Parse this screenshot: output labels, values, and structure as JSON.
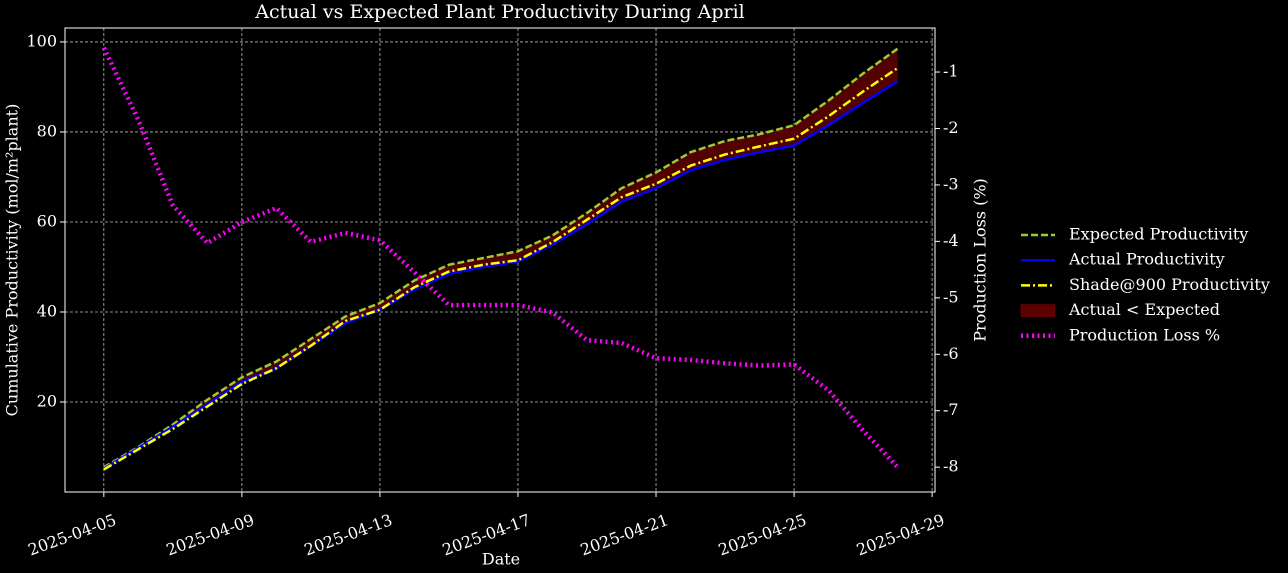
{
  "chart_data": {
    "type": "line",
    "title": "Actual vs Expected Plant Productivity During April",
    "x_label": "Date",
    "y_label": "Cumulative Productivity (mol/m²plant)",
    "y2_label": "Production Loss (%)",
    "x": [
      "2025-04-05",
      "2025-04-06",
      "2025-04-07",
      "2025-04-08",
      "2025-04-09",
      "2025-04-10",
      "2025-04-11",
      "2025-04-12",
      "2025-04-13",
      "2025-04-14",
      "2025-04-15",
      "2025-04-16",
      "2025-04-17",
      "2025-04-18",
      "2025-04-19",
      "2025-04-20",
      "2025-04-21",
      "2025-04-22",
      "2025-04-23",
      "2025-04-24",
      "2025-04-25",
      "2025-04-26",
      "2025-04-27",
      "2025-04-28"
    ],
    "xlim": [
      "2025-04-03T21:00Z",
      "2025-04-29T02:00Z"
    ],
    "xticks": [
      "2025-04-05",
      "2025-04-09",
      "2025-04-13",
      "2025-04-17",
      "2025-04-21",
      "2025-04-25",
      "2025-04-29"
    ],
    "ylim": [
      0,
      103.1
    ],
    "yticks": [
      20,
      40,
      60,
      80,
      100
    ],
    "y2lim": [
      -8.44,
      -0.22
    ],
    "y2ticks": [
      -1,
      -2,
      -3,
      -4,
      -5,
      -6,
      -7,
      -8
    ],
    "grid": true,
    "series": [
      {
        "name": "Expected Productivity",
        "color": "#9acd32",
        "style": "dashed",
        "values": [
          5.5,
          10,
          15,
          20.5,
          25.5,
          29,
          34,
          39,
          42,
          47,
          50.5,
          52,
          53.5,
          57,
          62,
          67.5,
          71,
          75.5,
          78,
          79.5,
          81.5,
          87,
          93,
          98.5
        ]
      },
      {
        "name": "Actual Productivity",
        "color": "#0000ff",
        "style": "solid",
        "values": [
          5.2,
          9.8,
          14.5,
          19.5,
          24.5,
          27.5,
          32.5,
          37.5,
          40.5,
          45,
          48.5,
          50,
          51.2,
          55,
          59.5,
          64.5,
          67.5,
          71.5,
          73.8,
          75.5,
          77,
          81.5,
          86.5,
          91.2
        ]
      },
      {
        "name": "Shade@900 Productivity",
        "color": "#ffff00",
        "style": "dashdot",
        "values": [
          5,
          9.5,
          14,
          19,
          24,
          27.5,
          32.5,
          38,
          40.5,
          45.5,
          49,
          50.5,
          51.5,
          55.5,
          60.5,
          65.5,
          68.5,
          72.5,
          75,
          76.8,
          78.5,
          83.5,
          89,
          94.2
        ]
      },
      {
        "name": "Production Loss %",
        "color": "#ff00ff",
        "style": "dotted",
        "axis": "y2",
        "values": [
          -0.57,
          -1.85,
          -3.36,
          -4.03,
          -3.66,
          -3.41,
          -4.01,
          -3.85,
          -3.98,
          -4.55,
          -5.13,
          -5.13,
          -5.13,
          -5.26,
          -5.75,
          -5.8,
          -6.07,
          -6.1,
          -6.16,
          -6.2,
          -6.18,
          -6.64,
          -7.35,
          -8.0
        ]
      }
    ],
    "fill": {
      "name": "Actual < Expected",
      "color": "#5c0000"
    }
  }
}
